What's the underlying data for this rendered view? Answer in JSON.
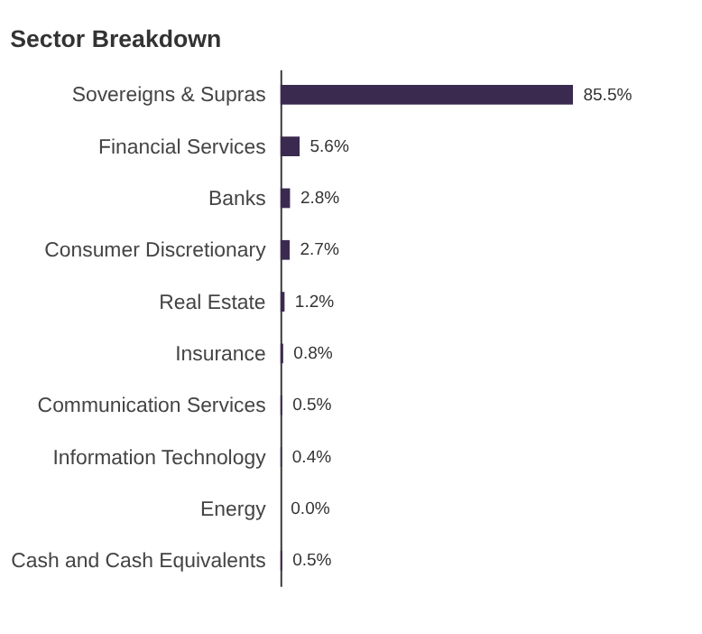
{
  "chart_data": {
    "type": "bar",
    "title": "Sector Breakdown",
    "orientation": "horizontal",
    "categories": [
      "Sovereigns & Supras",
      "Financial Services",
      "Banks",
      "Consumer Discretionary",
      "Real Estate",
      "Insurance",
      "Communication Services",
      "Information Technology",
      "Energy",
      "Cash and Cash Equivalents"
    ],
    "values": [
      85.5,
      5.6,
      2.8,
      2.7,
      1.2,
      0.8,
      0.5,
      0.4,
      0.0,
      0.5
    ],
    "value_labels": [
      "85.5%",
      "5.6%",
      "2.8%",
      "2.7%",
      "1.2%",
      "0.8%",
      "0.5%",
      "0.4%",
      "0.0%",
      "0.5%"
    ],
    "color": "#3b2a4f"
  }
}
